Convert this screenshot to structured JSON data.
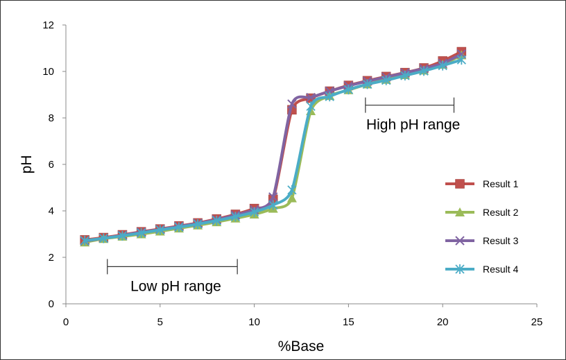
{
  "chart_data": {
    "type": "line",
    "title": "",
    "xlabel": "%Base",
    "ylabel": "pH",
    "xlim": [
      0,
      25
    ],
    "ylim": [
      0,
      12
    ],
    "xticks": [
      0,
      5,
      10,
      15,
      20,
      25
    ],
    "yticks": [
      0,
      2,
      4,
      6,
      8,
      10,
      12
    ],
    "grid": false,
    "legend_position": "right",
    "x": [
      1,
      2,
      3,
      4,
      5,
      6,
      7,
      8,
      9,
      10,
      11,
      12,
      13,
      14,
      15,
      16,
      17,
      18,
      19,
      20,
      21
    ],
    "series": [
      {
        "name": "Result 1",
        "color": "#c0504d",
        "marker": "square",
        "values": [
          2.75,
          2.85,
          2.97,
          3.1,
          3.22,
          3.35,
          3.48,
          3.65,
          3.85,
          4.1,
          4.5,
          8.35,
          8.85,
          9.15,
          9.4,
          9.6,
          9.78,
          9.95,
          10.15,
          10.45,
          10.85
        ]
      },
      {
        "name": "Result 2",
        "color": "#9bbb59",
        "marker": "triangle",
        "values": [
          2.65,
          2.8,
          2.9,
          3.0,
          3.12,
          3.25,
          3.38,
          3.52,
          3.68,
          3.85,
          4.1,
          4.55,
          8.3,
          8.95,
          9.2,
          9.45,
          9.65,
          9.85,
          10.05,
          10.3,
          10.7
        ]
      },
      {
        "name": "Result 3",
        "color": "#8064a2",
        "marker": "x",
        "values": [
          2.7,
          2.82,
          2.95,
          3.08,
          3.2,
          3.33,
          3.46,
          3.62,
          3.82,
          4.05,
          4.6,
          8.6,
          8.88,
          9.15,
          9.38,
          9.58,
          9.76,
          9.94,
          10.12,
          10.35,
          10.75
        ]
      },
      {
        "name": "Result 4",
        "color": "#4bacc6",
        "marker": "asterisk",
        "values": [
          2.72,
          2.82,
          2.93,
          3.05,
          3.18,
          3.3,
          3.43,
          3.58,
          3.75,
          3.95,
          4.25,
          4.9,
          8.5,
          8.92,
          9.22,
          9.45,
          9.62,
          9.82,
          10.02,
          10.25,
          10.5
        ]
      }
    ],
    "annotations": [
      {
        "text": "Low pH range",
        "from": 2.2,
        "to": 9.1,
        "y": 1.6
      },
      {
        "text": "High pH range",
        "from": 15.9,
        "to": 20.6,
        "y": 8.55
      }
    ]
  }
}
